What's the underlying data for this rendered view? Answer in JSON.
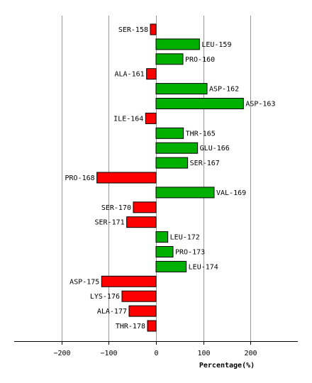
{
  "chart_data": {
    "type": "bar",
    "orientation": "horizontal",
    "categories": [
      "SER-158",
      "LEU-159",
      "PRO-160",
      "ALA-161",
      "ASP-162",
      "ASP-163",
      "ILE-164",
      "THR-165",
      "GLU-166",
      "SER-167",
      "PRO-168",
      "VAL-169",
      "SER-170",
      "SER-171",
      "LEU-172",
      "PRO-173",
      "LEU-174",
      "ASP-175",
      "LYS-176",
      "ALA-177",
      "THR-178"
    ],
    "values": [
      -12,
      92,
      57,
      -20,
      108,
      185,
      -22,
      58,
      88,
      67,
      -125,
      123,
      -48,
      -62,
      25,
      36,
      64,
      -115,
      -72,
      -57,
      -18
    ],
    "xlabel": "Percentage(%)",
    "xlim": [
      -300,
      300
    ],
    "xticks": [
      -200,
      -100,
      0,
      100,
      200
    ],
    "grid": true,
    "colors": {
      "positive": "#00b000",
      "negative": "#ff0000",
      "grid": "#999999"
    }
  }
}
